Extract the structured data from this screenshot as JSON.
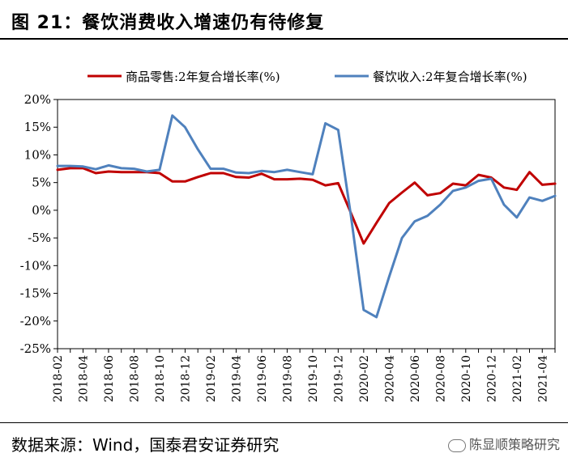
{
  "figure": {
    "title": "图 21：餐饮消费收入增速仍有待修复",
    "source": "数据来源：Wind，国泰君安证券研究",
    "watermark": "陈显顺策略研究"
  },
  "colors": {
    "retail": "#C00000",
    "catering": "#4F81BD"
  },
  "chart_data": {
    "type": "line",
    "title": "",
    "xlabel": "",
    "ylabel": "",
    "ylim": [
      -25,
      20
    ],
    "yticks": [
      -25,
      -20,
      -15,
      -10,
      -5,
      0,
      5,
      10,
      15,
      20
    ],
    "ytick_labels": [
      "-25%",
      "-20%",
      "-15%",
      "-10%",
      "-5%",
      "0%",
      "5%",
      "10%",
      "15%",
      "20%"
    ],
    "x": [
      "2018-02",
      "2018-03",
      "2018-04",
      "2018-05",
      "2018-06",
      "2018-07",
      "2018-08",
      "2018-09",
      "2018-10",
      "2018-11",
      "2018-12",
      "2019-01",
      "2019-02",
      "2019-03",
      "2019-04",
      "2019-05",
      "2019-06",
      "2019-07",
      "2019-08",
      "2019-09",
      "2019-10",
      "2019-11",
      "2019-12",
      "2020-01",
      "2020-02",
      "2020-03",
      "2020-04",
      "2020-05",
      "2020-06",
      "2020-07",
      "2020-08",
      "2020-09",
      "2020-10",
      "2020-11",
      "2020-12",
      "2021-01",
      "2021-02",
      "2021-03",
      "2021-04",
      "2021-05"
    ],
    "xtick_labels": [
      "2018-02",
      "2018-04",
      "2018-06",
      "2018-08",
      "2018-10",
      "2018-12",
      "2019-02",
      "2019-04",
      "2019-06",
      "2019-08",
      "2019-10",
      "2019-12",
      "2020-02",
      "2020-04",
      "2020-06",
      "2020-08",
      "2020-10",
      "2020-12",
      "2021-02",
      "2021-04"
    ],
    "legend_position": "top",
    "grid": false,
    "series": [
      {
        "name": "商品零售:2年复合增长率(%)",
        "color_key": "retail",
        "values": [
          7.3,
          7.6,
          7.6,
          6.7,
          7.0,
          6.9,
          6.9,
          6.9,
          6.7,
          5.2,
          5.2,
          6.0,
          6.7,
          6.7,
          6.0,
          5.9,
          6.6,
          5.6,
          5.6,
          5.7,
          5.5,
          4.5,
          4.9,
          -0.5,
          -6.0,
          -2.3,
          1.3,
          3.2,
          5.0,
          2.7,
          3.1,
          4.8,
          4.5,
          6.4,
          5.9,
          4.1,
          3.7,
          6.9,
          4.6,
          4.8
        ]
      },
      {
        "name": "餐饮收入:2年复合增长率(%)",
        "color_key": "catering",
        "values": [
          8.0,
          8.0,
          7.9,
          7.4,
          8.1,
          7.6,
          7.5,
          7.0,
          7.3,
          17.1,
          15.0,
          11.0,
          7.5,
          7.5,
          6.8,
          6.7,
          7.1,
          6.9,
          7.3,
          6.9,
          6.5,
          15.7,
          14.5,
          -1.0,
          -18.0,
          -19.3,
          -12.0,
          -5.0,
          -2.0,
          -1.0,
          1.0,
          3.5,
          4.1,
          5.3,
          5.7,
          1.0,
          -1.3,
          2.3,
          1.7,
          2.6
        ]
      }
    ]
  }
}
